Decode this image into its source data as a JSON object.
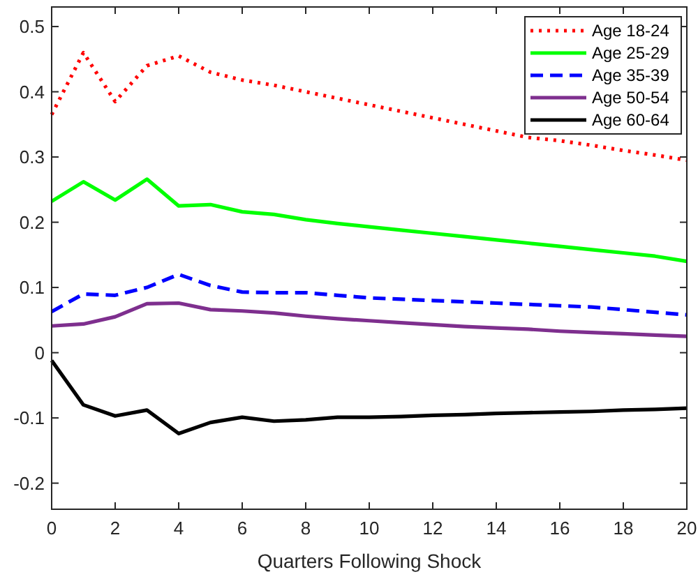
{
  "chart_data": {
    "type": "line",
    "xlabel": "Quarters Following Shock",
    "x": [
      0,
      1,
      2,
      3,
      4,
      5,
      6,
      7,
      8,
      9,
      10,
      11,
      12,
      13,
      14,
      15,
      16,
      17,
      18,
      19,
      20
    ],
    "xlim": [
      0,
      20
    ],
    "xticks": [
      0,
      2,
      4,
      6,
      8,
      10,
      12,
      14,
      16,
      18,
      20
    ],
    "ylim": [
      -0.24,
      0.53
    ],
    "yticks": [
      -0.2,
      -0.1,
      0,
      0.1,
      0.2,
      0.3,
      0.4,
      0.5
    ],
    "legend": "top right",
    "grid": false,
    "series": [
      {
        "name": "Age 18-24",
        "color": "#ff0000",
        "line_style": "dotted",
        "values": [
          0.365,
          0.46,
          0.385,
          0.44,
          0.455,
          0.43,
          0.418,
          0.41,
          0.4,
          0.39,
          0.38,
          0.37,
          0.36,
          0.35,
          0.34,
          0.33,
          0.325,
          0.318,
          0.31,
          0.303,
          0.295
        ]
      },
      {
        "name": "Age 25-29",
        "color": "#00ff00",
        "line_style": "solid",
        "values": [
          0.232,
          0.262,
          0.234,
          0.266,
          0.225,
          0.227,
          0.216,
          0.212,
          0.204,
          0.198,
          0.193,
          0.188,
          0.183,
          0.178,
          0.173,
          0.168,
          0.163,
          0.158,
          0.153,
          0.148,
          0.14
        ]
      },
      {
        "name": "Age 35-39",
        "color": "#0000ff",
        "line_style": "dashed",
        "values": [
          0.063,
          0.09,
          0.088,
          0.1,
          0.12,
          0.103,
          0.093,
          0.092,
          0.092,
          0.088,
          0.084,
          0.082,
          0.08,
          0.078,
          0.076,
          0.074,
          0.072,
          0.07,
          0.066,
          0.062,
          0.058
        ]
      },
      {
        "name": "Age 50-54",
        "color": "#7e2f8e",
        "line_style": "solid",
        "values": [
          0.041,
          0.044,
          0.055,
          0.075,
          0.076,
          0.066,
          0.064,
          0.061,
          0.056,
          0.052,
          0.049,
          0.046,
          0.043,
          0.04,
          0.038,
          0.036,
          0.033,
          0.031,
          0.029,
          0.027,
          0.025
        ]
      },
      {
        "name": "Age 60-64",
        "color": "#000000",
        "line_style": "solid",
        "values": [
          -0.012,
          -0.08,
          -0.097,
          -0.088,
          -0.124,
          -0.107,
          -0.099,
          -0.105,
          -0.103,
          -0.099,
          -0.099,
          -0.098,
          -0.096,
          -0.095,
          -0.093,
          -0.092,
          -0.091,
          -0.09,
          -0.088,
          -0.087,
          -0.085
        ]
      }
    ]
  }
}
